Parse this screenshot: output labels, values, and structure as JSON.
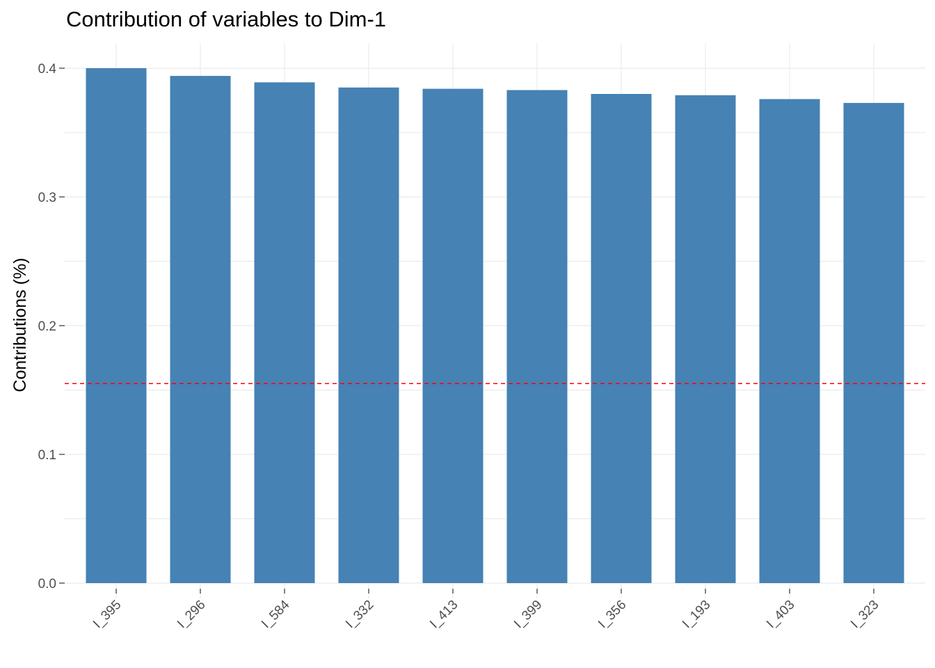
{
  "chart_data": {
    "type": "bar",
    "title": "Contribution of variables to Dim-1",
    "xlabel": "",
    "ylabel": "Contributions (%)",
    "categories": [
      "I_395",
      "I_296",
      "I_584",
      "I_332",
      "I_413",
      "I_399",
      "I_356",
      "I_193",
      "I_403",
      "I_323"
    ],
    "values": [
      0.4,
      0.394,
      0.389,
      0.385,
      0.384,
      0.383,
      0.38,
      0.379,
      0.376,
      0.373
    ],
    "ylim": [
      0,
      0.4
    ],
    "yticks": [
      "0.0",
      "0.1",
      "0.2",
      "0.3",
      "0.4"
    ],
    "reference_line": {
      "value": 0.155,
      "style": "dashed",
      "color": "#ff0000"
    },
    "bar_color": "#4682b4",
    "grid": true,
    "legend": "none"
  }
}
